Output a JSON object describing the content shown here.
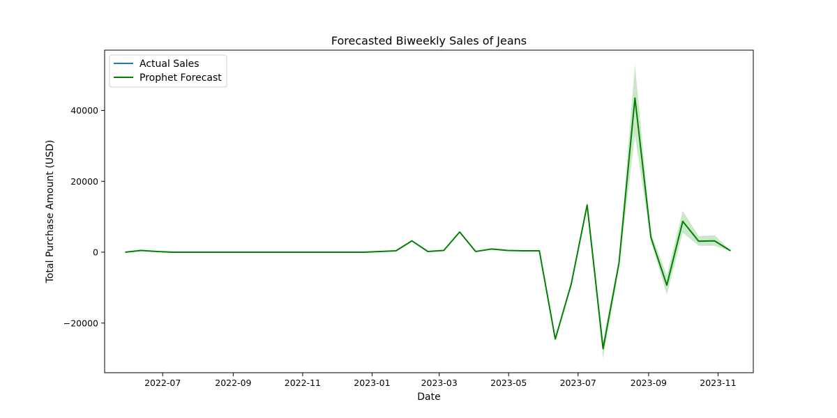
{
  "chart_data": {
    "type": "line",
    "title": "Forecasted Biweekly Sales of Jeans",
    "xlabel": "Date",
    "ylabel": "Total Purchase Amount (USD)",
    "x_range": [
      "2022-05-11",
      "2023-12-02"
    ],
    "ylim": [
      -34000,
      57000
    ],
    "x_ticks": [
      "2022-07-01",
      "2022-09-01",
      "2022-11-01",
      "2023-01-01",
      "2023-03-01",
      "2023-05-01",
      "2023-07-01",
      "2023-09-01",
      "2023-11-01"
    ],
    "x_tick_labels": [
      "2022-07",
      "2022-09",
      "2022-11",
      "2023-01",
      "2023-03",
      "2023-05",
      "2023-07",
      "2023-09",
      "2023-11"
    ],
    "y_ticks": [
      -20000,
      0,
      20000,
      40000
    ],
    "y_tick_labels": [
      "−20000",
      "0",
      "20000",
      "40000"
    ],
    "grid": false,
    "legend_position": "upper-left",
    "series": [
      {
        "name": "Actual Sales",
        "color": "#1f77b4",
        "x": [],
        "values": []
      },
      {
        "name": "Prophet Forecast",
        "color": "#008000",
        "band_color": "#2ca02c",
        "x": [
          "2022-05-29",
          "2022-06-12",
          "2022-06-26",
          "2022-07-10",
          "2022-07-24",
          "2022-08-07",
          "2022-08-21",
          "2022-09-04",
          "2022-09-18",
          "2022-10-02",
          "2022-10-16",
          "2022-10-30",
          "2022-11-13",
          "2022-11-27",
          "2022-12-11",
          "2022-12-25",
          "2023-01-08",
          "2023-01-22",
          "2023-02-05",
          "2023-02-19",
          "2023-03-05",
          "2023-03-19",
          "2023-04-02",
          "2023-04-16",
          "2023-04-30",
          "2023-05-14",
          "2023-05-28",
          "2023-06-11",
          "2023-06-25",
          "2023-07-09",
          "2023-07-23",
          "2023-08-06",
          "2023-08-20",
          "2023-09-03",
          "2023-09-17",
          "2023-10-01",
          "2023-10-15",
          "2023-10-29",
          "2023-11-12"
        ],
        "values": [
          0,
          500,
          200,
          0,
          0,
          0,
          0,
          0,
          0,
          0,
          0,
          0,
          0,
          0,
          0,
          0,
          200,
          400,
          3200,
          200,
          500,
          5700,
          200,
          900,
          500,
          400,
          400,
          -24500,
          -9000,
          13300,
          -27200,
          -3000,
          43500,
          4200,
          -9300,
          8700,
          3100,
          3200,
          400
        ],
        "lower": [
          0,
          500,
          200,
          0,
          0,
          0,
          0,
          0,
          0,
          0,
          0,
          0,
          0,
          0,
          0,
          0,
          200,
          400,
          3100,
          200,
          450,
          5500,
          150,
          850,
          450,
          350,
          350,
          -24700,
          -9500,
          12500,
          -30000,
          -4500,
          33000,
          3200,
          -12000,
          5500,
          1800,
          1800,
          300
        ],
        "upper": [
          0,
          500,
          200,
          0,
          0,
          0,
          0,
          0,
          0,
          0,
          0,
          0,
          0,
          0,
          0,
          0,
          200,
          400,
          3300,
          200,
          550,
          5900,
          250,
          950,
          550,
          450,
          450,
          -24300,
          -8500,
          14300,
          -25000,
          -2000,
          53000,
          5500,
          -6500,
          11700,
          4500,
          4800,
          500
        ]
      }
    ]
  }
}
